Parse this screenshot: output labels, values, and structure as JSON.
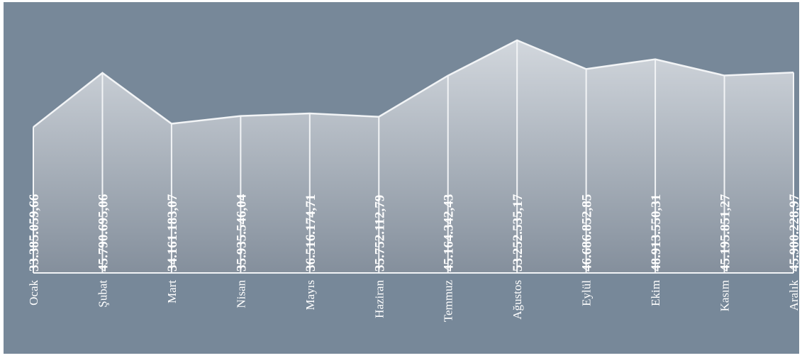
{
  "chart_data": {
    "type": "area",
    "categories": [
      "Ocak",
      "Şubat",
      "Mart",
      "Nisan",
      "Mayıs",
      "Haziran",
      "Temmuz",
      "Ağustos",
      "Eylül",
      "Ekim",
      "Kasım",
      "Aralık"
    ],
    "values": [
      33385059.66,
      45790695.06,
      34161183.07,
      35935546.04,
      36516174.71,
      35752112.79,
      45164342.43,
      53252535.17,
      46686852.85,
      48913550.31,
      45195851.27,
      45900228.97
    ],
    "labels": [
      "33.385.059,66",
      "45.790.695,06",
      "34.161.183,07",
      "35.935.546,04",
      "36.516.174,71",
      "35.752.112,79",
      "45.164.342,43",
      "53.252.535,17",
      "46.686.852,85",
      "48.913.550,31",
      "45.195.851,27",
      "45.900.228,97"
    ],
    "ylim": [
      0,
      62000000
    ],
    "grid": false,
    "legend": "none",
    "colors": {
      "background": "#778899",
      "line": "#f2f4f6",
      "area_top": "#d2d7dd",
      "area_bottom": "#848f9c",
      "text": "#ffffff"
    }
  }
}
